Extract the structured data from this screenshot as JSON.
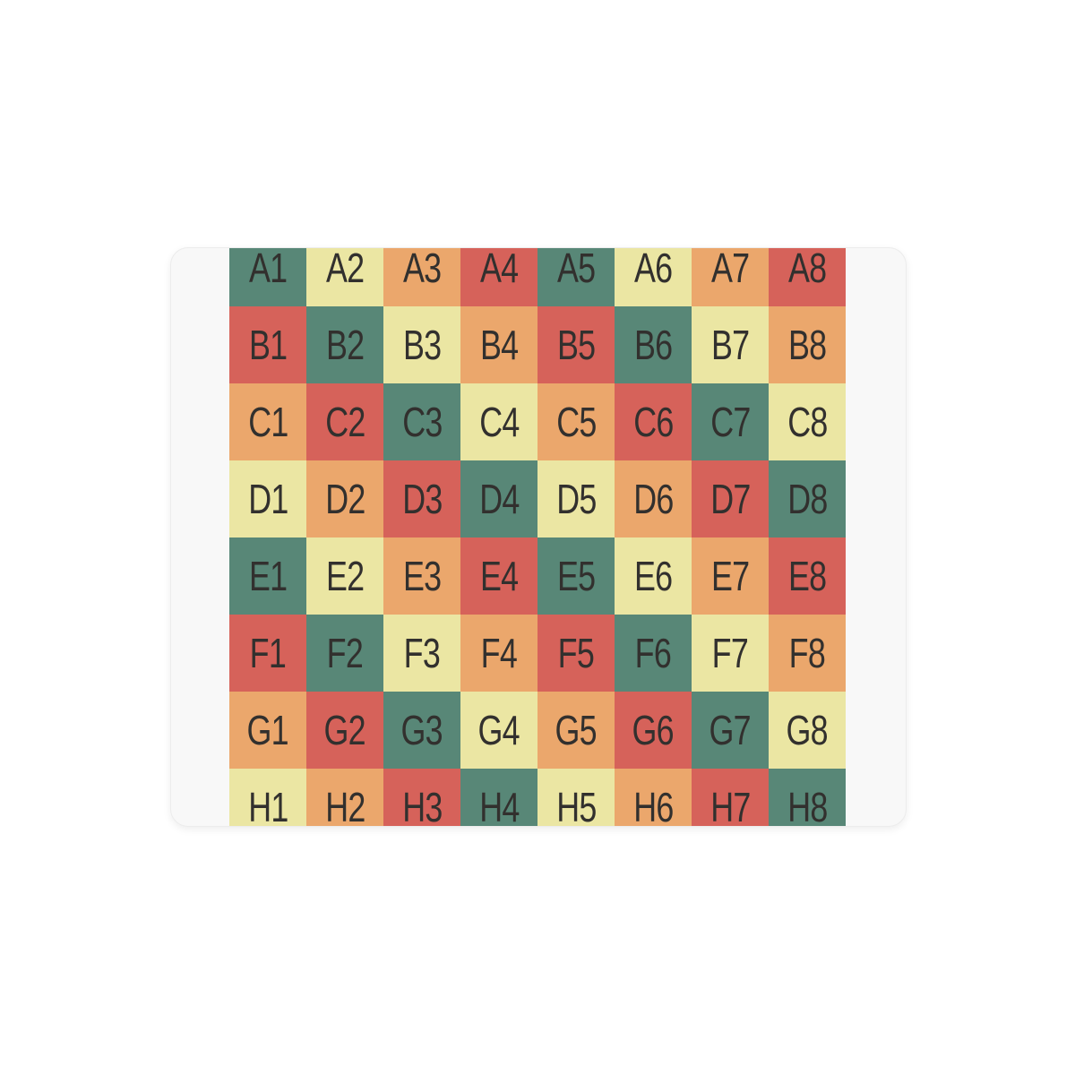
{
  "page": {
    "background_color": "#ffffff"
  },
  "card": {
    "background_color": "#f8f8f8",
    "border_color": "#ececec"
  },
  "palette": {
    "teal": "#588777",
    "yellow": "#ebe6a3",
    "orange": "#eba76c",
    "red": "#d6625a",
    "label_text": "#32302e"
  },
  "grid": {
    "row_labels": [
      "A",
      "B",
      "C",
      "D",
      "E",
      "F",
      "G",
      "H"
    ],
    "column_labels": [
      "1",
      "2",
      "3",
      "4",
      "5",
      "6",
      "7",
      "8"
    ],
    "cells": [
      {
        "label": "A1",
        "color": "teal"
      },
      {
        "label": "A2",
        "color": "yellow"
      },
      {
        "label": "A3",
        "color": "orange"
      },
      {
        "label": "A4",
        "color": "red"
      },
      {
        "label": "A5",
        "color": "teal"
      },
      {
        "label": "A6",
        "color": "yellow"
      },
      {
        "label": "A7",
        "color": "orange"
      },
      {
        "label": "A8",
        "color": "red"
      },
      {
        "label": "B1",
        "color": "red"
      },
      {
        "label": "B2",
        "color": "teal"
      },
      {
        "label": "B3",
        "color": "yellow"
      },
      {
        "label": "B4",
        "color": "orange"
      },
      {
        "label": "B5",
        "color": "red"
      },
      {
        "label": "B6",
        "color": "teal"
      },
      {
        "label": "B7",
        "color": "yellow"
      },
      {
        "label": "B8",
        "color": "orange"
      },
      {
        "label": "C1",
        "color": "orange"
      },
      {
        "label": "C2",
        "color": "red"
      },
      {
        "label": "C3",
        "color": "teal"
      },
      {
        "label": "C4",
        "color": "yellow"
      },
      {
        "label": "C5",
        "color": "orange"
      },
      {
        "label": "C6",
        "color": "red"
      },
      {
        "label": "C7",
        "color": "teal"
      },
      {
        "label": "C8",
        "color": "yellow"
      },
      {
        "label": "D1",
        "color": "yellow"
      },
      {
        "label": "D2",
        "color": "orange"
      },
      {
        "label": "D3",
        "color": "red"
      },
      {
        "label": "D4",
        "color": "teal"
      },
      {
        "label": "D5",
        "color": "yellow"
      },
      {
        "label": "D6",
        "color": "orange"
      },
      {
        "label": "D7",
        "color": "red"
      },
      {
        "label": "D8",
        "color": "teal"
      },
      {
        "label": "E1",
        "color": "teal"
      },
      {
        "label": "E2",
        "color": "yellow"
      },
      {
        "label": "E3",
        "color": "orange"
      },
      {
        "label": "E4",
        "color": "red"
      },
      {
        "label": "E5",
        "color": "teal"
      },
      {
        "label": "E6",
        "color": "yellow"
      },
      {
        "label": "E7",
        "color": "orange"
      },
      {
        "label": "E8",
        "color": "red"
      },
      {
        "label": "F1",
        "color": "red"
      },
      {
        "label": "F2",
        "color": "teal"
      },
      {
        "label": "F3",
        "color": "yellow"
      },
      {
        "label": "F4",
        "color": "orange"
      },
      {
        "label": "F5",
        "color": "red"
      },
      {
        "label": "F6",
        "color": "teal"
      },
      {
        "label": "F7",
        "color": "yellow"
      },
      {
        "label": "F8",
        "color": "orange"
      },
      {
        "label": "G1",
        "color": "orange"
      },
      {
        "label": "G2",
        "color": "red"
      },
      {
        "label": "G3",
        "color": "teal"
      },
      {
        "label": "G4",
        "color": "yellow"
      },
      {
        "label": "G5",
        "color": "orange"
      },
      {
        "label": "G6",
        "color": "red"
      },
      {
        "label": "G7",
        "color": "teal"
      },
      {
        "label": "G8",
        "color": "yellow"
      },
      {
        "label": "H1",
        "color": "yellow"
      },
      {
        "label": "H2",
        "color": "orange"
      },
      {
        "label": "H3",
        "color": "red"
      },
      {
        "label": "H4",
        "color": "teal"
      },
      {
        "label": "H5",
        "color": "yellow"
      },
      {
        "label": "H6",
        "color": "orange"
      },
      {
        "label": "H7",
        "color": "red"
      },
      {
        "label": "H8",
        "color": "teal"
      }
    ]
  }
}
